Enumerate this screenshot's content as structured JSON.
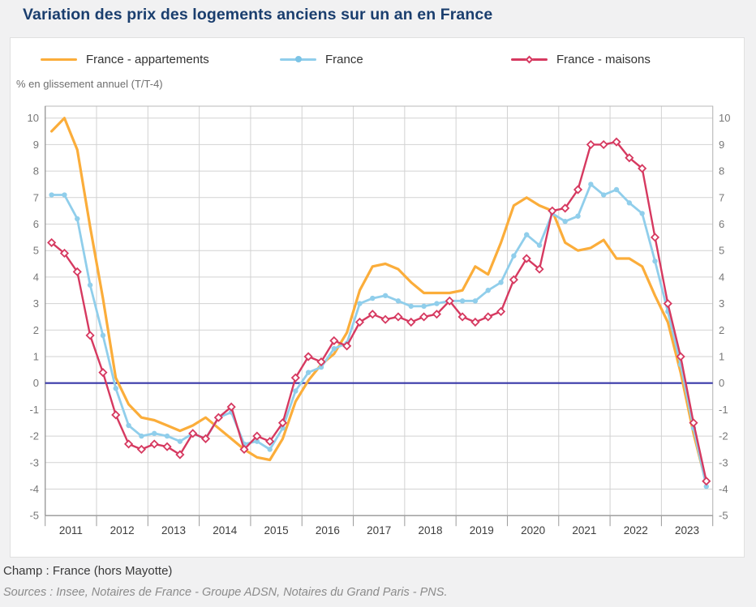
{
  "page": {
    "title": "Variation des prix des logements anciens sur un an en France"
  },
  "chart": {
    "subtitle": "% en glissement annuel (T/T-4)",
    "footer": {
      "champ": "Champ : France (hors Mayotte)",
      "sources": "Sources : Insee, Notaires de France - Groupe ADSN, Notaires du Grand Paris - PNS."
    }
  },
  "chart_data": {
    "type": "line",
    "title": "Variation des prix des logements anciens sur un an en France",
    "xlabel": "",
    "ylabel": "% en glissement annuel (T/T-4)",
    "frequency": "quarterly",
    "x_start": "2011-T1",
    "x_end": "2023-T4",
    "year_labels": [
      "2011",
      "2012",
      "2013",
      "2014",
      "2015",
      "2016",
      "2017",
      "2018",
      "2019",
      "2020",
      "2021",
      "2022",
      "2023"
    ],
    "quarters_per_year": 4,
    "ylim": [
      -5,
      10
    ],
    "y_ticks": [
      10,
      9,
      8,
      7,
      6,
      5,
      4,
      3,
      2,
      1,
      0,
      -1,
      -2,
      -3,
      -4,
      -5
    ],
    "grid": true,
    "legend_position": "top",
    "baseline": {
      "value": 0,
      "color": "#3838a8"
    },
    "colors": {
      "appartements": "#FBAD3A",
      "france": "#90CEEB",
      "maisons": "#D63960",
      "gridline": "#d2d2d2",
      "plot_border": "#b9b9b9",
      "axis": "#9a9a9a",
      "tick_label": "#777777",
      "year_label": "#3d3d3d"
    },
    "series": [
      {
        "name": "France - appartements",
        "color": "#FBAD3A",
        "marker": "none",
        "width": 3.2,
        "values": [
          9.5,
          10.0,
          8.8,
          5.9,
          3.2,
          0.2,
          -0.8,
          -1.3,
          -1.4,
          -1.6,
          -1.8,
          -1.6,
          -1.3,
          -1.7,
          -2.1,
          -2.5,
          -2.8,
          -2.9,
          -2.1,
          -0.7,
          0.1,
          0.7,
          1.1,
          1.9,
          3.5,
          4.4,
          4.5,
          4.3,
          3.8,
          3.4,
          3.4,
          3.4,
          3.5,
          4.4,
          4.1,
          5.3,
          6.7,
          7.0,
          6.7,
          6.5,
          5.3,
          5.0,
          5.1,
          5.4,
          4.7,
          4.7,
          4.4,
          3.3,
          2.3,
          0.4,
          -1.9,
          -3.8
        ]
      },
      {
        "name": "France",
        "color": "#90CEEB",
        "marker": "circle",
        "width": 2.8,
        "values": [
          7.1,
          7.1,
          6.2,
          3.7,
          1.8,
          -0.2,
          -1.6,
          -2.0,
          -1.9,
          -2.0,
          -2.2,
          -1.9,
          -2.1,
          -1.3,
          -1.1,
          -2.3,
          -2.2,
          -2.5,
          -1.7,
          -0.3,
          0.4,
          0.6,
          1.3,
          1.5,
          3.0,
          3.2,
          3.3,
          3.1,
          2.9,
          2.9,
          3.0,
          3.1,
          3.1,
          3.1,
          3.5,
          3.8,
          4.8,
          5.6,
          5.2,
          6.4,
          6.1,
          6.3,
          7.5,
          7.1,
          7.3,
          6.8,
          6.4,
          4.6,
          2.7,
          0.7,
          -1.7,
          -3.9
        ]
      },
      {
        "name": "France - maisons",
        "color": "#D63960",
        "marker": "diamond-open",
        "width": 2.4,
        "values": [
          5.3,
          4.9,
          4.2,
          1.8,
          0.4,
          -1.2,
          -2.3,
          -2.5,
          -2.3,
          -2.4,
          -2.7,
          -1.9,
          -2.1,
          -1.3,
          -0.9,
          -2.5,
          -2.0,
          -2.2,
          -1.5,
          0.2,
          1.0,
          0.8,
          1.6,
          1.4,
          2.3,
          2.6,
          2.4,
          2.5,
          2.3,
          2.5,
          2.6,
          3.1,
          2.5,
          2.3,
          2.5,
          2.7,
          3.9,
          4.7,
          4.3,
          6.5,
          6.6,
          7.3,
          9.0,
          9.0,
          9.1,
          8.5,
          8.1,
          5.5,
          3.0,
          1.0,
          -1.5,
          -3.7
        ]
      }
    ]
  }
}
